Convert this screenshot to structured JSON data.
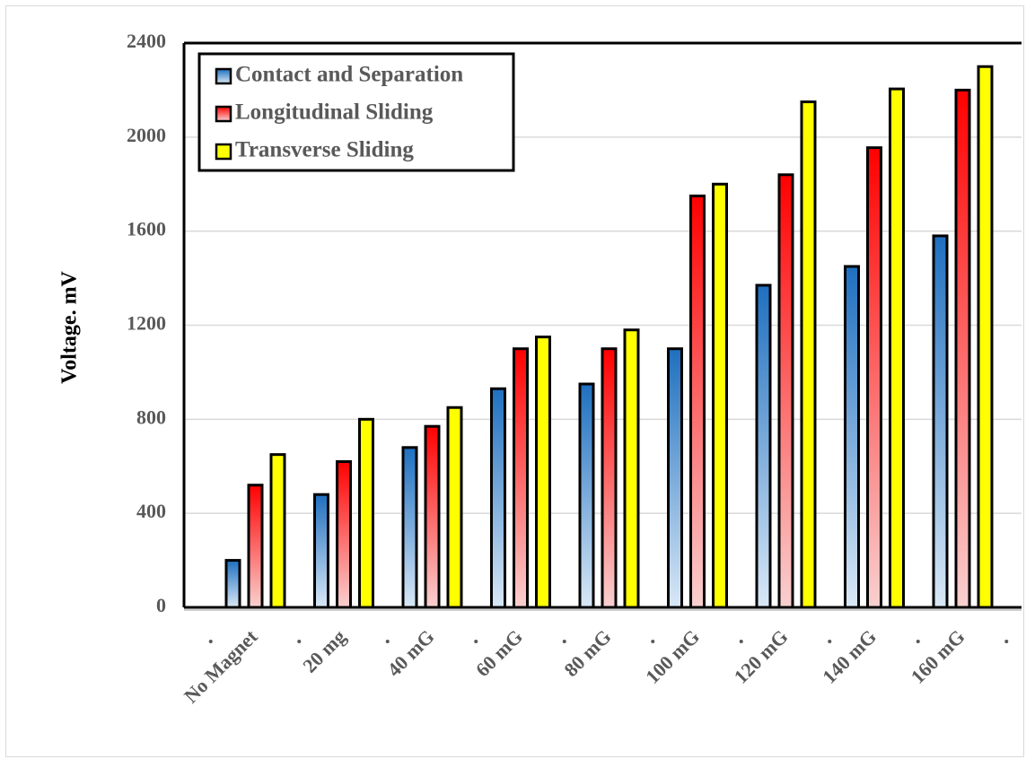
{
  "chart_data": {
    "type": "bar",
    "title": "",
    "xlabel": "",
    "ylabel": "Voltage. mV",
    "ylim": [
      0,
      2400
    ],
    "yticks": [
      "0",
      "400",
      "800",
      "1200",
      "1600",
      "2000",
      "2400"
    ],
    "grid": true,
    "legend_position": "top-left",
    "categories": [
      "No Magnet",
      "20 mg",
      "40 mG",
      "60 mG",
      "80 mG",
      "100 mG",
      "120 mG",
      "140 mG",
      "160 mG"
    ],
    "series": [
      {
        "name": "Contact and Separation",
        "color": "#2e75b6",
        "values": [
          200,
          480,
          680,
          930,
          950,
          1100,
          1370,
          1450,
          1580
        ]
      },
      {
        "name": "Longitudinal Sliding",
        "color": "#ff0000",
        "values": [
          520,
          620,
          770,
          1100,
          1100,
          1750,
          1840,
          1955,
          2200
        ]
      },
      {
        "name": "Transverse Sliding",
        "color": "#ffff00",
        "values": [
          650,
          800,
          850,
          1150,
          1180,
          1800,
          2150,
          2205,
          2300
        ]
      }
    ]
  }
}
